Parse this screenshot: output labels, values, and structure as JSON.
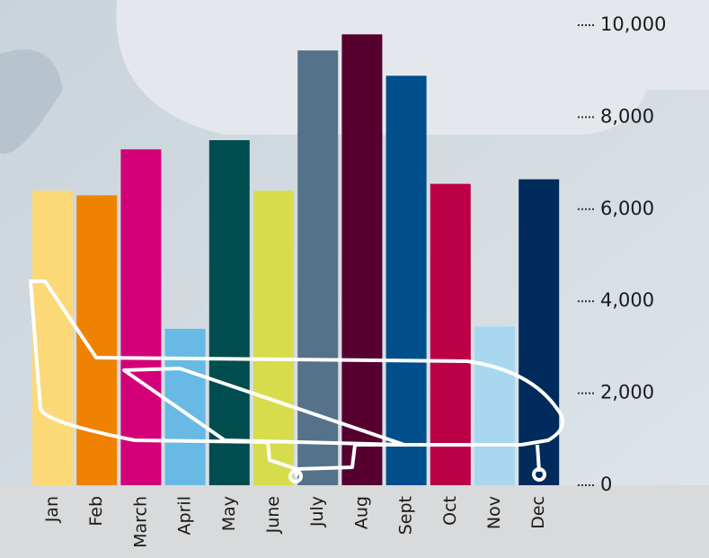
{
  "chart_data": {
    "type": "bar",
    "categories": [
      "Jan",
      "Feb",
      "March",
      "April",
      "May",
      "June",
      "July",
      "Aug",
      "Sept",
      "Oct",
      "Nov",
      "Dec"
    ],
    "values": [
      6400,
      6300,
      7300,
      3400,
      7500,
      6400,
      9450,
      9800,
      8900,
      6550,
      3450,
      6650
    ],
    "colors": [
      "#fcd977",
      "#ef8200",
      "#d4007a",
      "#68b9e4",
      "#004d4f",
      "#d7dc4d",
      "#56718a",
      "#560030",
      "#004e8c",
      "#bc0045",
      "#a9d7f0",
      "#002b5c"
    ],
    "ylim": [
      0,
      10000
    ],
    "yticks": [
      0,
      {
        "value": 2000,
        "label": "2,000"
      },
      {
        "value": 4000,
        "label": "4,000"
      },
      {
        "value": 6000,
        "label": "6,000"
      },
      {
        "value": 8000,
        "label": "8,000"
      },
      {
        "value": 10000,
        "label": "10,000"
      }
    ]
  }
}
